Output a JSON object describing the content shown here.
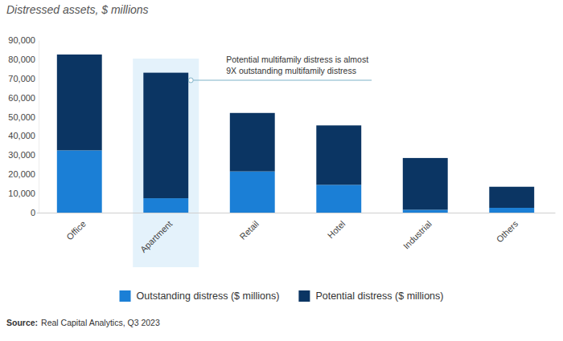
{
  "chart_data": {
    "type": "bar",
    "stacked": true,
    "title": "Distressed assets, $ millions",
    "categories": [
      "Office",
      "Apartment",
      "Retail",
      "Hotel",
      "Industrial",
      "Others"
    ],
    "series": [
      {
        "name": "Outstanding distress ($ millions)",
        "color": "#1b7fd6",
        "values": [
          32500,
          7500,
          21500,
          14500,
          1500,
          2500
        ]
      },
      {
        "name": "Potential distress ($ millions)",
        "color": "#0b3563",
        "values": [
          50000,
          65500,
          30500,
          31000,
          27000,
          11000
        ]
      }
    ],
    "ylim": [
      0,
      90000
    ],
    "yticks": [
      0,
      {
        "value": 10000,
        "label": "10,000"
      },
      {
        "value": 20000,
        "label": "20,000"
      },
      {
        "value": 30000,
        "label": "30,000"
      },
      {
        "value": 40000,
        "label": "40,000"
      },
      {
        "value": 50000,
        "label": "50,000"
      },
      {
        "value": 60000,
        "label": "60,000"
      },
      {
        "value": 70000,
        "label": "70,000"
      },
      {
        "value": 80000,
        "label": "80,000"
      },
      {
        "value": 90000,
        "label": "90,000"
      }
    ],
    "grid": false,
    "legend": "bottom",
    "annotation": {
      "text": [
        "Potential multifamily distress is almost",
        "9X outstanding multifamily distress"
      ],
      "category": "Apartment"
    },
    "source_label": "Source:",
    "source": "Real Capital Analytics, Q3 2023"
  }
}
